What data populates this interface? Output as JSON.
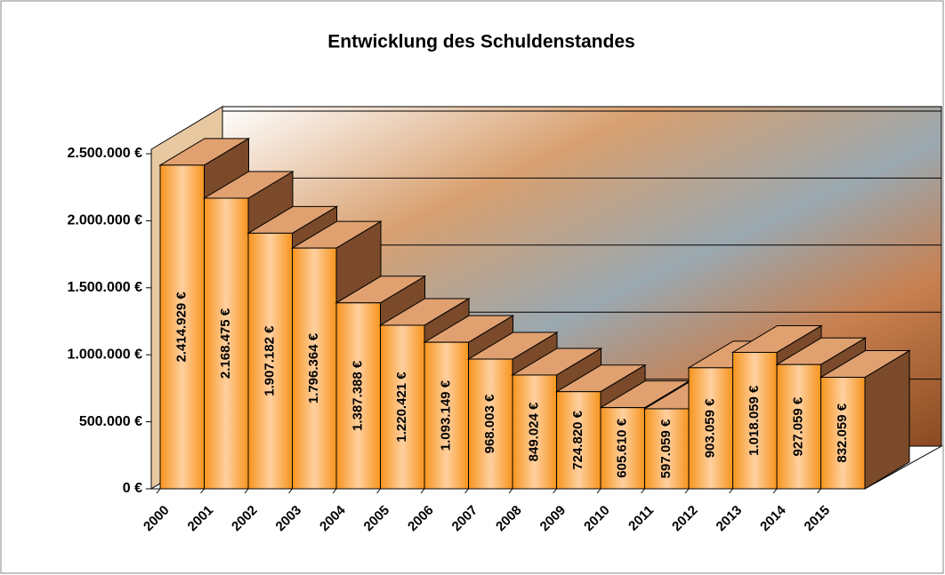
{
  "chart_data": {
    "type": "bar3d",
    "title": "Entwicklung des Schuldenstandes",
    "categories": [
      "2000",
      "2001",
      "2002",
      "2003",
      "2004",
      "2005",
      "2006",
      "2007",
      "2008",
      "2009",
      "2010",
      "2011",
      "2012",
      "2013",
      "2014",
      "2015"
    ],
    "values": [
      2414929,
      2168475,
      1907182,
      1796364,
      1387388,
      1220421,
      1093149,
      968003,
      849024,
      724820,
      605610,
      597059,
      903059,
      1018059,
      927059,
      832059
    ],
    "value_labels": [
      "2.414.929 €",
      "2.168.475 €",
      "1.907.182 €",
      "1.796.364 €",
      "1.387.388 €",
      "1.220.421 €",
      "1.093.149 €",
      "968.003 €",
      "849.024 €",
      "724.820 €",
      "605.610 €",
      "597.059 €",
      "903.059 €",
      "1.018.059 €",
      "927.059 €",
      "832.059 €"
    ],
    "color": "#f7941d",
    "ylim": [
      0,
      2500000
    ],
    "yticks": [
      {
        "value": 0,
        "label": "0 €"
      },
      {
        "value": 500000,
        "label": "500.000 €"
      },
      {
        "value": 1000000,
        "label": "1.000.000 €"
      },
      {
        "value": 1500000,
        "label": "1.500.000 €"
      },
      {
        "value": 2000000,
        "label": "2.000.000 €"
      },
      {
        "value": 2500000,
        "label": "2.500.000 €"
      }
    ],
    "grid": true
  }
}
